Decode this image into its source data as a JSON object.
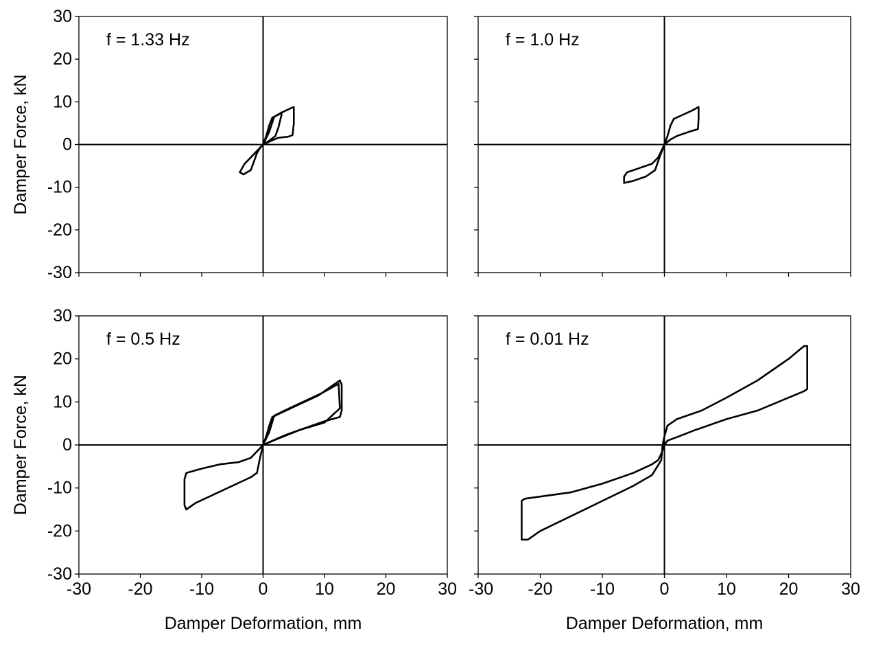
{
  "chart_data": [
    {
      "type": "line",
      "label": "f = 1.33 Hz",
      "xlabel": "",
      "ylabel": "Damper Force, kN",
      "xlim": [
        -30,
        30
      ],
      "ylim": [
        -30,
        30
      ],
      "x_ticks": [],
      "y_ticks": [
        "30",
        "20",
        "10",
        "0",
        "-10",
        "-20",
        "-30"
      ],
      "grid": false,
      "series": [
        {
          "points": [
            [
              0,
              0
            ],
            [
              0.5,
              2
            ],
            [
              1,
              4.5
            ],
            [
              1.5,
              6.3
            ],
            [
              2.5,
              7
            ],
            [
              3,
              7.5
            ],
            [
              3,
              7
            ],
            [
              2.5,
              4
            ],
            [
              2,
              2
            ],
            [
              1,
              0.9
            ],
            [
              0,
              0
            ],
            [
              -1,
              -1.5
            ],
            [
              -2,
              -3
            ],
            [
              -3,
              -4.5
            ],
            [
              -3.8,
              -6.5
            ],
            [
              -3.2,
              -7
            ],
            [
              -2,
              -6
            ],
            [
              -1.5,
              -4
            ],
            [
              -1,
              -2
            ],
            [
              -0.5,
              -0.8
            ],
            [
              0,
              0
            ]
          ]
        },
        {
          "points": [
            [
              0,
              0
            ],
            [
              1,
              3
            ],
            [
              1.8,
              6.5
            ],
            [
              3,
              7.5
            ],
            [
              4.5,
              8.5
            ],
            [
              5,
              8.8
            ],
            [
              5,
              5
            ],
            [
              4.8,
              2.2
            ],
            [
              4,
              1.8
            ],
            [
              2.5,
              1.6
            ],
            [
              1.5,
              1
            ],
            [
              0,
              0
            ]
          ]
        }
      ]
    },
    {
      "type": "line",
      "label": "f = 1.0 Hz",
      "xlabel": "",
      "ylabel": "",
      "xlim": [
        -30,
        30
      ],
      "ylim": [
        -30,
        30
      ],
      "x_ticks": [],
      "y_ticks": [],
      "grid": false,
      "series": [
        {
          "points": [
            [
              0,
              0
            ],
            [
              0.5,
              2
            ],
            [
              1,
              4.5
            ],
            [
              1.5,
              6
            ],
            [
              3,
              7
            ],
            [
              4.5,
              8
            ],
            [
              5.5,
              8.8
            ],
            [
              5.5,
              6
            ],
            [
              5.4,
              3.6
            ],
            [
              4,
              3
            ],
            [
              2,
              2
            ],
            [
              1,
              1.2
            ],
            [
              0,
              0
            ],
            [
              -0.5,
              -1.5
            ],
            [
              -1,
              -3
            ],
            [
              -2,
              -4.5
            ],
            [
              -4,
              -5.5
            ],
            [
              -6,
              -6.5
            ],
            [
              -6.5,
              -7.5
            ],
            [
              -6.5,
              -9
            ],
            [
              -5,
              -8.5
            ],
            [
              -3,
              -7.5
            ],
            [
              -1.5,
              -6
            ],
            [
              -0.8,
              -3
            ],
            [
              0,
              0
            ]
          ]
        }
      ]
    },
    {
      "type": "line",
      "label": "f = 0.5 Hz",
      "xlabel": "Damper Deformation, mm",
      "ylabel": "Damper Force, kN",
      "xlim": [
        -30,
        30
      ],
      "ylim": [
        -30,
        30
      ],
      "x_ticks": [
        "-30",
        "-20",
        "-10",
        "0",
        "10",
        "20",
        "30"
      ],
      "y_ticks": [
        "30",
        "20",
        "10",
        "0",
        "-10",
        "-20",
        "-30"
      ],
      "grid": false,
      "series": [
        {
          "points": [
            [
              0,
              0
            ],
            [
              0.5,
              2
            ],
            [
              1,
              4.5
            ],
            [
              1.5,
              6.5
            ],
            [
              3,
              7.5
            ],
            [
              6,
              9.5
            ],
            [
              9,
              11.5
            ],
            [
              11,
              13.5
            ],
            [
              12.5,
              15
            ],
            [
              12.8,
              14
            ],
            [
              12.8,
              8
            ],
            [
              12.5,
              6.5
            ],
            [
              10,
              5.5
            ],
            [
              7,
              4
            ],
            [
              4,
              2.5
            ],
            [
              2,
              1.3
            ],
            [
              0,
              0
            ],
            [
              -1,
              -1.5
            ],
            [
              -2,
              -3
            ],
            [
              -4,
              -4
            ],
            [
              -7,
              -4.5
            ],
            [
              -10,
              -5.5
            ],
            [
              -12.5,
              -6.5
            ],
            [
              -12.8,
              -8
            ],
            [
              -12.8,
              -14
            ],
            [
              -12.5,
              -15
            ],
            [
              -11,
              -13.5
            ],
            [
              -8,
              -11.5
            ],
            [
              -5,
              -9.5
            ],
            [
              -2,
              -7.5
            ],
            [
              -1,
              -6.5
            ],
            [
              -0.5,
              -3
            ],
            [
              0,
              0
            ]
          ]
        },
        {
          "points": [
            [
              0,
              0
            ],
            [
              1,
              3
            ],
            [
              1.8,
              6.8
            ],
            [
              3.5,
              8
            ],
            [
              6.5,
              10
            ],
            [
              9.5,
              12
            ],
            [
              12.3,
              14.2
            ],
            [
              12.5,
              8.5
            ],
            [
              10,
              5.2
            ],
            [
              6,
              3.5
            ],
            [
              2.5,
              1.5
            ],
            [
              0,
              0
            ]
          ]
        }
      ]
    },
    {
      "type": "line",
      "label": "f = 0.01 Hz",
      "xlabel": "Damper Deformation, mm",
      "ylabel": "",
      "xlim": [
        -30,
        30
      ],
      "ylim": [
        -30,
        30
      ],
      "x_ticks": [
        "-30",
        "-20",
        "-10",
        "0",
        "10",
        "20",
        "30"
      ],
      "y_ticks": [],
      "grid": false,
      "series": [
        {
          "points": [
            [
              -0.3,
              0
            ],
            [
              0,
              2
            ],
            [
              0.5,
              4.5
            ],
            [
              2,
              6
            ],
            [
              6,
              8
            ],
            [
              10,
              11
            ],
            [
              15,
              15
            ],
            [
              20,
              20
            ],
            [
              22.5,
              23
            ],
            [
              23,
              23
            ],
            [
              23,
              21
            ],
            [
              23,
              13
            ],
            [
              22.5,
              12.5
            ],
            [
              20,
              11
            ],
            [
              15,
              8
            ],
            [
              10,
              6
            ],
            [
              5,
              3.5
            ],
            [
              2,
              1.8
            ],
            [
              0.5,
              1
            ],
            [
              0,
              0
            ],
            [
              -0.5,
              -2
            ],
            [
              -1,
              -3.5
            ],
            [
              -2,
              -4.5
            ],
            [
              -5,
              -6.5
            ],
            [
              -10,
              -9
            ],
            [
              -15,
              -11
            ],
            [
              -20,
              -12
            ],
            [
              -22.5,
              -12.5
            ],
            [
              -23,
              -13
            ],
            [
              -23,
              -22
            ],
            [
              -22,
              -22
            ],
            [
              -20,
              -20
            ],
            [
              -15,
              -16.5
            ],
            [
              -10,
              -13
            ],
            [
              -5,
              -9.5
            ],
            [
              -2,
              -7
            ],
            [
              -0.5,
              -3.5
            ],
            [
              -0.3,
              0
            ]
          ]
        }
      ]
    }
  ]
}
